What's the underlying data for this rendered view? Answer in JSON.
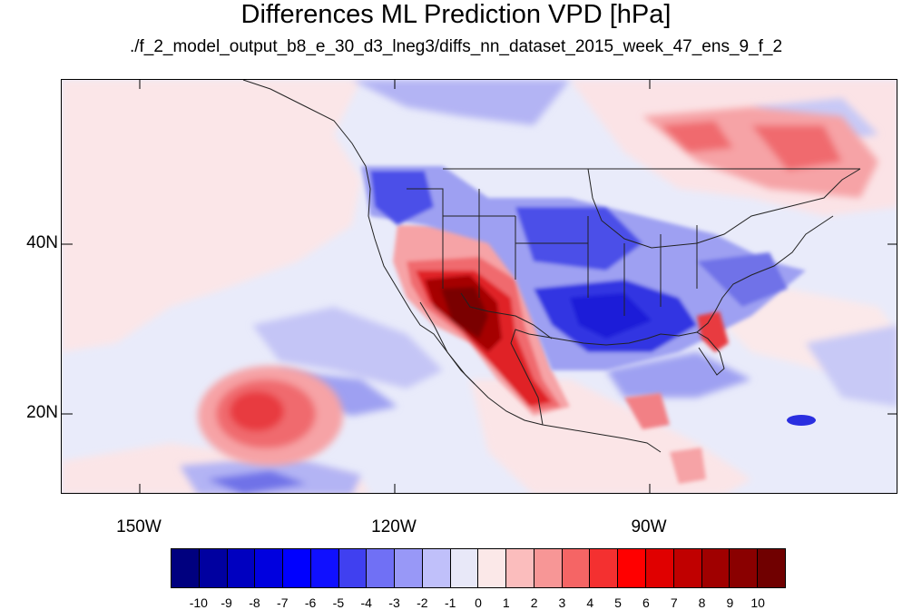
{
  "title": "Differences ML Prediction VPD [hPa]",
  "subtitle": "./f_2_model_output_b8_e_30_d3_lneg3/diffs_nn_dataset_2015_week_47_ens_9_f_2",
  "map": {
    "projection": "cylindrical-equidistant",
    "lon_range": [
      -159,
      -61
    ],
    "lat_range": [
      11,
      60
    ],
    "lat_labels": [
      "40N",
      "20N"
    ],
    "lon_labels": [
      "150W",
      "120W",
      "90W"
    ]
  },
  "colorbar": {
    "labels": [
      "-10",
      "-9",
      "-8",
      "-7",
      "-6",
      "-5",
      "-4",
      "-3",
      "-2",
      "-1",
      "0",
      "1",
      "2",
      "3",
      "4",
      "5",
      "6",
      "7",
      "8",
      "9",
      "10"
    ],
    "colors": [
      "#00007f",
      "#0000a0",
      "#0000c0",
      "#0000df",
      "#0000ff",
      "#1010ff",
      "#4040f0",
      "#7070f5",
      "#9898f7",
      "#c0c0fa",
      "#e8e8f8",
      "#fbe8e8",
      "#fbbdbd",
      "#f79696",
      "#f56565",
      "#f43030",
      "#ff0000",
      "#e00000",
      "#c00000",
      "#a00000",
      "#8a0000",
      "#700000"
    ]
  }
}
